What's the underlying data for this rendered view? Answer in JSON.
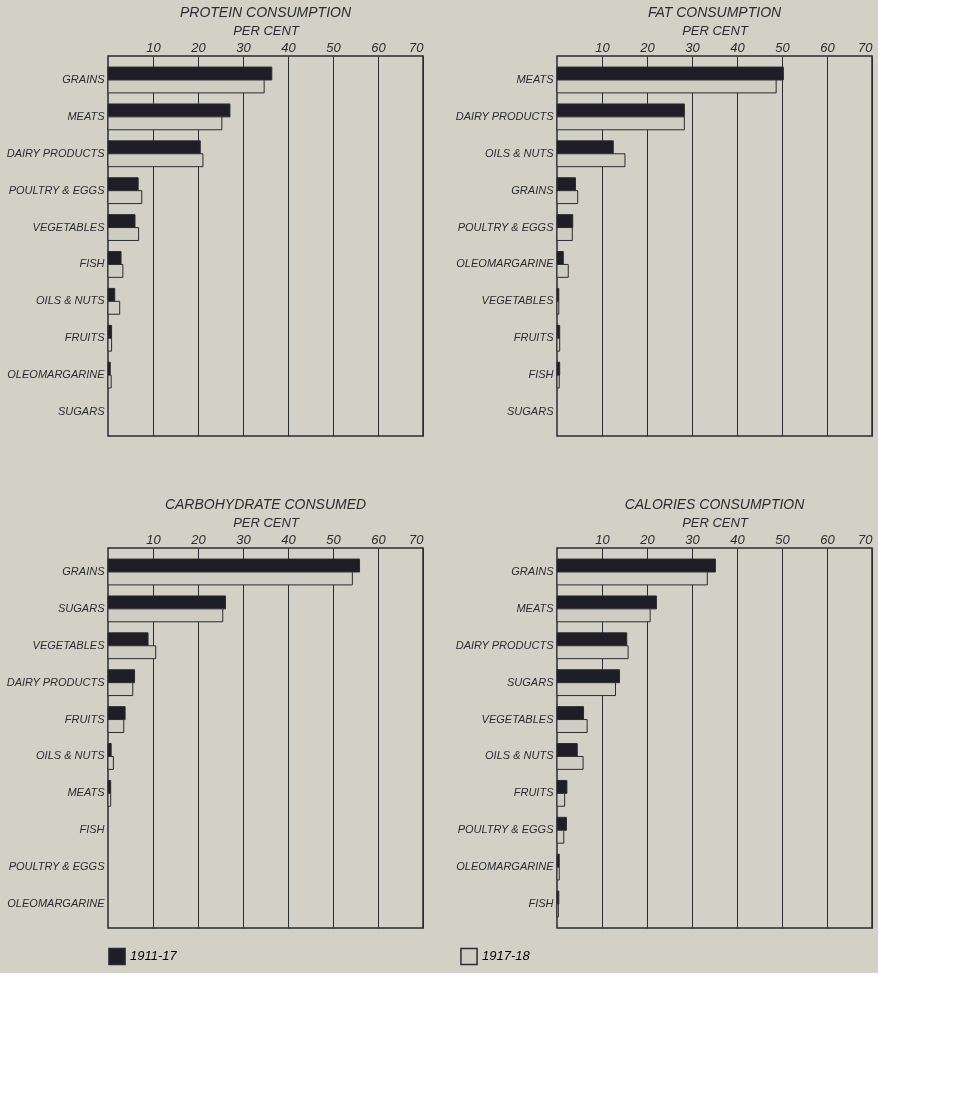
{
  "chart_data": [
    {
      "type": "bar",
      "orientation": "horizontal",
      "title": "PROTEIN CONSUMPTION",
      "xlabel": "PER CENT",
      "categories": [
        "GRAINS",
        "MEATS",
        "DAIRY PRODUCTS",
        "POULTRY & EGGS",
        "VEGETABLES",
        "FISH",
        "OILS & NUTS",
        "FRUITS",
        "OLEOMARGARINE",
        "SUGARS"
      ],
      "series": [
        {
          "name": "1911-17",
          "color": "#1e1f26",
          "values": [
            36.4,
            27.1,
            20.5,
            6.7,
            6.0,
            2.9,
            1.5,
            0.8,
            0.5,
            0
          ]
        },
        {
          "name": "1917-18",
          "color": "#cfcdc1",
          "values": [
            34.7,
            25.3,
            21.1,
            7.5,
            6.8,
            3.3,
            2.6,
            0.8,
            0.7,
            0
          ]
        }
      ],
      "xlim": [
        0,
        70
      ],
      "xticks": [
        10,
        20,
        30,
        40,
        50,
        60,
        70
      ],
      "grid": "x",
      "legend": "bottom"
    },
    {
      "type": "bar",
      "orientation": "horizontal",
      "title": "FAT CONSUMPTION",
      "xlabel": "PER CENT",
      "categories": [
        "MEATS",
        "DAIRY PRODUCTS",
        "OILS & NUTS",
        "GRAINS",
        "POULTRY & EGGS",
        "OLEOMARGARINE",
        "VEGETABLES",
        "FRUITS",
        "FISH",
        "SUGARS"
      ],
      "series": [
        {
          "name": "1911-17",
          "color": "#1e1f26",
          "values": [
            50.3,
            28.3,
            12.5,
            4.1,
            3.5,
            1.4,
            0.4,
            0.6,
            0.6,
            0
          ]
        },
        {
          "name": "1917-18",
          "color": "#cfcdc1",
          "values": [
            48.7,
            28.3,
            15.1,
            4.6,
            3.4,
            2.5,
            0.4,
            0.6,
            0.5,
            0
          ]
        }
      ],
      "xlim": [
        0,
        70
      ],
      "xticks": [
        10,
        20,
        30,
        40,
        50,
        60,
        70
      ],
      "grid": "x",
      "legend": "bottom"
    },
    {
      "type": "bar",
      "orientation": "horizontal",
      "title": "CARBOHYDRATE CONSUMED",
      "xlabel": "PER CENT",
      "categories": [
        "GRAINS",
        "SUGARS",
        "VEGETABLES",
        "DAIRY PRODUCTS",
        "FRUITS",
        "OILS & NUTS",
        "MEATS",
        "FISH",
        "POULTRY & EGGS",
        "OLEOMARGARINE"
      ],
      "series": [
        {
          "name": "1911-17",
          "color": "#1e1f26",
          "values": [
            55.9,
            26.1,
            8.9,
            5.9,
            3.8,
            0.7,
            0.6,
            0,
            0,
            0
          ]
        },
        {
          "name": "1917-18",
          "color": "#cfcdc1",
          "values": [
            54.3,
            25.5,
            10.6,
            5.5,
            3.5,
            1.2,
            0.6,
            0,
            0,
            0
          ]
        }
      ],
      "xlim": [
        0,
        70
      ],
      "xticks": [
        10,
        20,
        30,
        40,
        50,
        60,
        70
      ],
      "grid": "x",
      "legend": "bottom"
    },
    {
      "type": "bar",
      "orientation": "horizontal",
      "title": "CALORIES CONSUMPTION",
      "xlabel": "PER CENT",
      "categories": [
        "GRAINS",
        "MEATS",
        "DAIRY PRODUCTS",
        "SUGARS",
        "VEGETABLES",
        "OILS & NUTS",
        "FRUITS",
        "POULTRY & EGGS",
        "OLEOMARGARINE",
        "FISH"
      ],
      "series": [
        {
          "name": "1911-17",
          "color": "#1e1f26",
          "values": [
            35.2,
            22.1,
            15.5,
            13.9,
            5.9,
            4.5,
            2.2,
            2.1,
            0.5,
            0.4
          ]
        },
        {
          "name": "1917-18",
          "color": "#cfcdc1",
          "values": [
            33.4,
            20.7,
            15.8,
            13.0,
            6.7,
            5.8,
            1.7,
            1.5,
            0.5,
            0.3
          ]
        }
      ],
      "xlim": [
        0,
        70
      ],
      "xticks": [
        10,
        20,
        30,
        40,
        50,
        60,
        70
      ],
      "grid": "x",
      "legend": "bottom"
    }
  ]
}
